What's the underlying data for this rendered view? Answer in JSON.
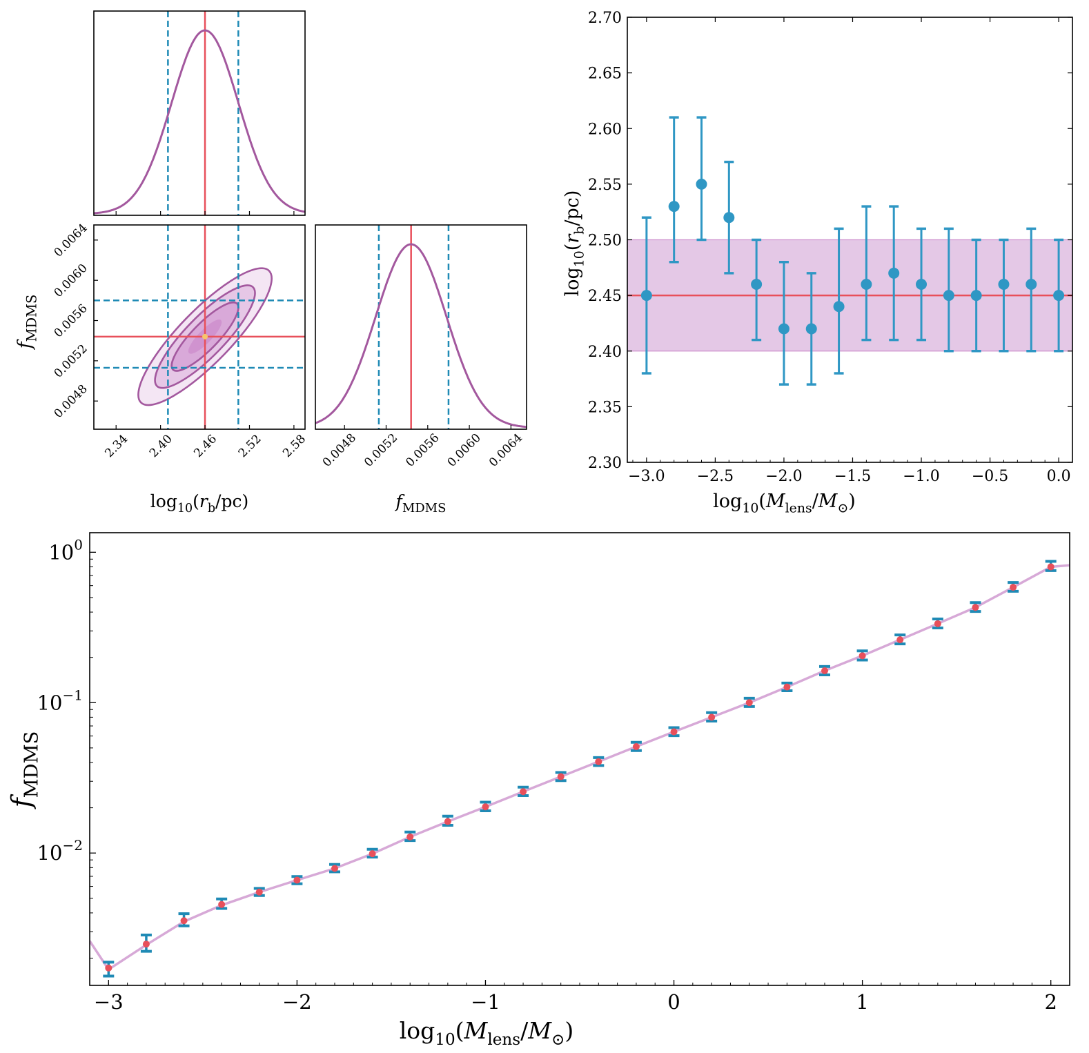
{
  "colors": {
    "posterior": "#a3589e",
    "truth": "#e8505b",
    "ci": "#1f8ab5",
    "fill": "#cc8ccb",
    "band": "#e4c8e6",
    "model_line": "#d7a9d7",
    "point_fill": "#2f97c4",
    "best": "#f6c56b"
  },
  "chart_data": [
    {
      "id": "corner",
      "type": "corner",
      "parameters": [
        "log10(r_b/pc)",
        "f_MDMS"
      ],
      "axis_labels": {
        "rb": {
          "base": "log",
          "sub": "10",
          "rest": "(r",
          "rest_sub": "b",
          "tail": "/pc)"
        },
        "f": {
          "main": "f",
          "sub": "MDMS"
        }
      },
      "rb_range": [
        2.31,
        2.595
      ],
      "f_range": [
        0.00452,
        0.00655
      ],
      "rb_ticks": [
        "2.34",
        "2.40",
        "2.46",
        "2.52",
        "2.58"
      ],
      "f_ticks": [
        "0.0048",
        "0.0052",
        "0.0056",
        "0.0060",
        "0.0064"
      ],
      "truth": {
        "rb": 2.46,
        "f": 0.00544
      },
      "ci_rb": [
        2.41,
        2.505
      ],
      "ci_f": [
        0.00513,
        0.0058
      ],
      "rb_sigma": 0.045,
      "f_sigma": 0.00034,
      "correlation": 0.85,
      "contour_levels_sigma": [
        0.5,
        1.0,
        1.5,
        2.0
      ]
    },
    {
      "id": "rb_vs_mass",
      "type": "scatter",
      "xlabel": {
        "base": "log",
        "sub": "10",
        "rest": "(M",
        "rest_sub": "lens",
        "mid": "/M",
        "mid_sub": "⊙",
        "tail": ")"
      },
      "ylabel": {
        "base": "log",
        "sub": "10",
        "rest": "(r",
        "rest_sub": "b",
        "tail": "/pc)"
      },
      "xlim": [
        -3.14,
        0.1
      ],
      "ylim": [
        2.3,
        2.7
      ],
      "x_ticks": [
        "−3.0",
        "−2.5",
        "−2.0",
        "−1.5",
        "−1.0",
        "−0.5",
        "0.0"
      ],
      "y_ticks": [
        "2.30",
        "2.35",
        "2.40",
        "2.45",
        "2.50",
        "2.55",
        "2.60",
        "2.65",
        "2.70"
      ],
      "x": [
        -3.0,
        -2.8,
        -2.6,
        -2.4,
        -2.2,
        -2.0,
        -1.8,
        -1.6,
        -1.4,
        -1.2,
        -1.0,
        -0.8,
        -0.6,
        -0.4,
        -0.2,
        0.0
      ],
      "y": [
        2.45,
        2.53,
        2.55,
        2.52,
        2.46,
        2.42,
        2.42,
        2.44,
        2.46,
        2.47,
        2.46,
        2.45,
        2.45,
        2.46,
        2.46,
        2.45
      ],
      "yerr_low": [
        2.38,
        2.48,
        2.5,
        2.47,
        2.41,
        2.37,
        2.37,
        2.38,
        2.41,
        2.41,
        2.41,
        2.4,
        2.4,
        2.4,
        2.4,
        2.4
      ],
      "yerr_high": [
        2.52,
        2.61,
        2.61,
        2.57,
        2.5,
        2.48,
        2.47,
        2.51,
        2.53,
        2.53,
        2.51,
        2.51,
        2.5,
        2.5,
        2.51,
        2.5
      ],
      "truth_line": 2.45,
      "band": [
        2.4,
        2.5
      ]
    },
    {
      "id": "f_vs_mass",
      "type": "scatter",
      "yscale": "log",
      "xlabel": {
        "base": "log",
        "sub": "10",
        "rest": "(M",
        "rest_sub": "lens",
        "mid": "/M",
        "mid_sub": "⊙",
        "tail": ")"
      },
      "ylabel": {
        "main": "f",
        "sub": "MDMS"
      },
      "xlim": [
        -3.1,
        2.1
      ],
      "ylim_log10": [
        -2.88,
        0.13
      ],
      "x_ticks": [
        "−3",
        "−2",
        "−1",
        "0",
        "1",
        "2"
      ],
      "y_ticks": [
        {
          "base": "10",
          "exp": "0"
        },
        {
          "base": "10",
          "exp": "−1"
        },
        {
          "base": "10",
          "exp": "−2"
        }
      ],
      "x": [
        -3.0,
        -2.8,
        -2.6,
        -2.4,
        -2.2,
        -2.0,
        -1.8,
        -1.6,
        -1.4,
        -1.2,
        -1.0,
        -0.8,
        -0.6,
        -0.4,
        -0.2,
        0.0,
        0.2,
        0.4,
        0.6,
        0.8,
        1.0,
        1.2,
        1.4,
        1.6,
        1.8,
        2.0
      ],
      "y": [
        0.00172,
        0.00248,
        0.00355,
        0.00455,
        0.0055,
        0.0066,
        0.0079,
        0.0099,
        0.0128,
        0.0162,
        0.0203,
        0.0256,
        0.0322,
        0.0405,
        0.051,
        0.064,
        0.08,
        0.1,
        0.127,
        0.163,
        0.205,
        0.262,
        0.335,
        0.43,
        0.585,
        0.8
      ],
      "yerr_low": [
        0.00152,
        0.00222,
        0.00328,
        0.00428,
        0.00522,
        0.00625,
        0.0075,
        0.0094,
        0.0121,
        0.0153,
        0.0191,
        0.0241,
        0.0303,
        0.0382,
        0.048,
        0.0603,
        0.0754,
        0.0942,
        0.12,
        0.153,
        0.192,
        0.246,
        0.314,
        0.404,
        0.55,
        0.755
      ],
      "yerr_high": [
        0.00188,
        0.00285,
        0.00395,
        0.00495,
        0.00582,
        0.00698,
        0.0084,
        0.0106,
        0.0138,
        0.0176,
        0.0218,
        0.0274,
        0.0343,
        0.0431,
        0.0545,
        0.0682,
        0.0858,
        0.107,
        0.135,
        0.174,
        0.221,
        0.282,
        0.36,
        0.463,
        0.63,
        0.87
      ],
      "model_line_x": [
        -3.1,
        -3.0,
        -2.8,
        -2.6,
        -2.4,
        -2.2,
        -2.0,
        -1.8,
        -1.6,
        -1.4,
        -1.2,
        -1.0,
        -0.8,
        -0.6,
        -0.4,
        -0.2,
        0.0,
        0.2,
        0.4,
        0.6,
        0.8,
        1.0,
        1.2,
        1.4,
        1.6,
        1.8,
        2.0,
        2.1
      ],
      "model_line_y": [
        0.0026,
        0.00168,
        0.00245,
        0.0035,
        0.0045,
        0.0055,
        0.0066,
        0.0079,
        0.0099,
        0.0128,
        0.0162,
        0.0203,
        0.0256,
        0.0322,
        0.0405,
        0.051,
        0.064,
        0.08,
        0.1,
        0.127,
        0.163,
        0.205,
        0.262,
        0.335,
        0.43,
        0.585,
        0.8,
        0.82
      ]
    }
  ]
}
